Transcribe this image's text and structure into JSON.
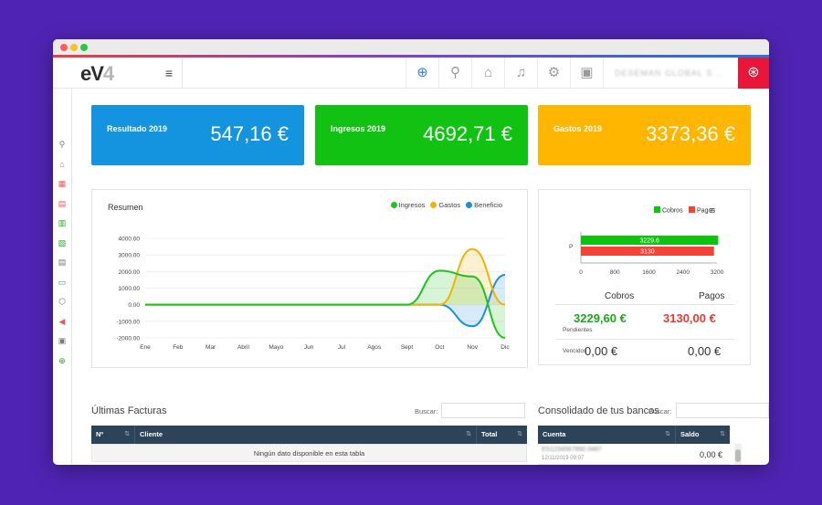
{
  "app": {
    "logo_main": "eV",
    "logo_num": "4",
    "company_name": "DESEMAN GLOBAL S..."
  },
  "topbar": {
    "icons": [
      {
        "name": "add-icon",
        "glyph": "⊕",
        "color": "#3b7fd1"
      },
      {
        "name": "search-icon",
        "glyph": "⚲",
        "color": "#9a9a9a"
      },
      {
        "name": "home-icon",
        "glyph": "⌂",
        "color": "#9a9a9a"
      },
      {
        "name": "bell-icon",
        "glyph": "♫",
        "color": "#9a9a9a"
      },
      {
        "name": "gear-icon",
        "glyph": "⚙",
        "color": "#9a9a9a"
      },
      {
        "name": "briefcase-icon",
        "glyph": "▣",
        "color": "#9a9a9a"
      }
    ],
    "menu_glyph": "≡",
    "support_glyph": "⊛"
  },
  "sidebar": {
    "items": [
      {
        "name": "search-icon",
        "glyph": "⚲",
        "tone": "d"
      },
      {
        "name": "home-icon",
        "glyph": "⌂",
        "tone": ""
      },
      {
        "name": "grid-icon",
        "glyph": "▦",
        "tone": ""
      },
      {
        "name": "document-icon",
        "glyph": "▤",
        "tone": ""
      },
      {
        "name": "chart-icon",
        "glyph": "▥",
        "tone": "g"
      },
      {
        "name": "invoice-icon",
        "glyph": "▧",
        "tone": "g"
      },
      {
        "name": "list-icon",
        "glyph": "▤",
        "tone": "d"
      },
      {
        "name": "card-icon",
        "glyph": "▭",
        "tone": "b"
      },
      {
        "name": "box-icon",
        "glyph": "⬡",
        "tone": "d"
      },
      {
        "name": "megaphone-icon",
        "glyph": "◀",
        "tone": ""
      },
      {
        "name": "excel-icon",
        "glyph": "▣",
        "tone": "d"
      },
      {
        "name": "plus-circle-icon",
        "glyph": "⊕",
        "tone": "g"
      }
    ]
  },
  "kpis": [
    {
      "label": "Resultado 2019",
      "value": "547,16 €",
      "color": "#1493de"
    },
    {
      "label": "Ingresos 2019",
      "value": "4692,71 €",
      "color": "#12c212"
    },
    {
      "label": "Gastos 2019",
      "value": "3373,36 €",
      "color": "#ffb600"
    }
  ],
  "resumen": {
    "title": "Resumen",
    "legend": [
      {
        "name": "Ingresos",
        "color": "#1fc21f"
      },
      {
        "name": "Gastos",
        "color": "#f0b400"
      },
      {
        "name": "Beneficio",
        "color": "#1a8fe0"
      }
    ]
  },
  "chart_data": [
    {
      "type": "area",
      "title": "Resumen",
      "categories": [
        "Ene",
        "Feb",
        "Mar",
        "Abril",
        "Mayo",
        "Jun",
        "Jul",
        "Agos",
        "Sept",
        "Oct",
        "Nov",
        "Dic"
      ],
      "y_ticks": [
        "4000.00",
        "3000.00",
        "2000.00",
        "1000.00",
        "0.00",
        "-1000.00",
        "-2000.00"
      ],
      "ylim": [
        -2000,
        4000
      ],
      "grid": true,
      "legend_position": "top-right",
      "series": [
        {
          "name": "Ingresos",
          "color": "#1fc21f",
          "values": [
            0,
            0,
            0,
            0,
            0,
            0,
            0,
            0,
            0,
            2050,
            1700,
            -2000
          ]
        },
        {
          "name": "Gastos",
          "color": "#f0b400",
          "values": [
            0,
            0,
            0,
            0,
            0,
            0,
            0,
            0,
            0,
            0,
            3350,
            0
          ]
        },
        {
          "name": "Beneficio",
          "color": "#1a8fe0",
          "values": [
            0,
            0,
            0,
            0,
            0,
            0,
            0,
            0,
            0,
            0,
            -1300,
            1800
          ]
        }
      ]
    },
    {
      "type": "bar",
      "orientation": "horizontal",
      "categories": [
        "P"
      ],
      "x_ticks": [
        "0",
        "800",
        "1600",
        "2400",
        "3200"
      ],
      "xlim": [
        0,
        3200
      ],
      "legend_position": "top",
      "series": [
        {
          "name": "Cobros",
          "color": "#12c212",
          "values": [
            3229.6
          ],
          "label": "3229.6"
        },
        {
          "name": "Pagos",
          "color": "#f44336",
          "values": [
            3130
          ],
          "label": "3130"
        }
      ]
    }
  ],
  "cobros_pagos": {
    "cobros_label": "Cobros",
    "pagos_label": "Pagos",
    "pendientes_label": "Pendientes",
    "cobros_pendientes": "3229,60 €",
    "pagos_pendientes": "3130,00 €",
    "vencidos_label": "Vencidos",
    "cobros_vencidos": "0,00 €",
    "pagos_vencidos": "0,00 €",
    "menu_glyph": "≡"
  },
  "facturas": {
    "title": "Últimas Facturas",
    "search_label": "Buscar:",
    "columns": [
      "Nº",
      "Cliente",
      "Total"
    ],
    "empty_text": "Ningún dato disponible en esta tabla"
  },
  "bancos": {
    "title": "Consolidado de tus bancos",
    "search_label": "Buscar:",
    "columns": [
      "Cuenta",
      "Saldo"
    ],
    "rows": [
      {
        "account": "ES1234567890 0487",
        "date": "12/11/2019 09:07",
        "balance": "0,00 €"
      }
    ]
  }
}
